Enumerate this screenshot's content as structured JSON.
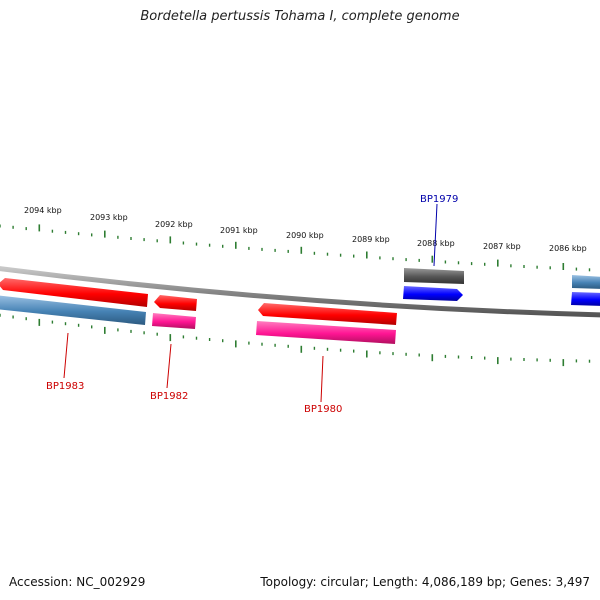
{
  "title": "Bordetella pertussis Tohama I, complete genome",
  "footer": {
    "accession": "Accession: NC_002929",
    "summary": "Topology: circular; Length: 4,086,189 bp; Genes: 3,497"
  },
  "ruler": {
    "labels": [
      "2094 kbp",
      "2093 kbp",
      "2092 kbp",
      "2091 kbp",
      "2090 kbp",
      "2089 kbp",
      "2088 kbp",
      "2087 kbp",
      "2086 kbp"
    ]
  },
  "genes": [
    {
      "id": "g1",
      "name": "BP1983",
      "label_color": "#cc0000"
    },
    {
      "id": "g2",
      "name": "BP1982",
      "label_color": "#cc0000"
    },
    {
      "id": "g3",
      "name": "BP1980",
      "label_color": "#cc0000"
    },
    {
      "id": "g4",
      "name": "BP1979",
      "label_color": "#0000aa"
    }
  ],
  "colors": {
    "cds_red": "#ff0000",
    "cds_pink": "#ff1493",
    "cds_steel": "#4682b4",
    "cds_blue": "#0000ff",
    "cds_gray": "#555555",
    "backbone": "#888888",
    "ticks": "#2e7d32"
  }
}
